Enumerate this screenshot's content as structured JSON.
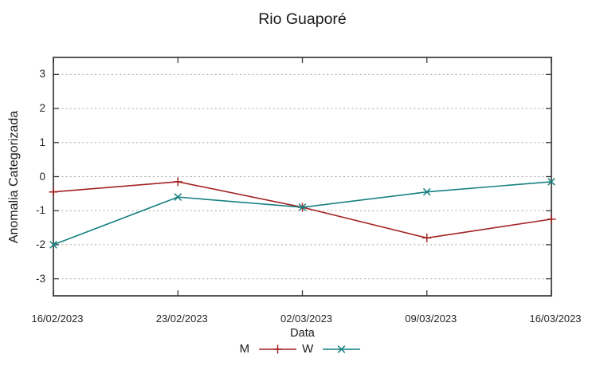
{
  "title": "Rio Guaporé",
  "colors": {
    "text": "#1a1a1a",
    "grid": "#a8a8a8",
    "frame": "#565656",
    "tick": "#3a3a3a",
    "series_m": "#a32323",
    "series_w": "#178080"
  },
  "chart_data": {
    "type": "line",
    "title": "Rio Guaporé",
    "xlabel": "Data",
    "ylabel": "Anomalia Categorizada",
    "categories": [
      "16/02/2023",
      "23/02/2023",
      "02/03/2023",
      "09/03/2023",
      "16/03/2023"
    ],
    "yticks": [
      3,
      2,
      1,
      0,
      -1,
      -2,
      -3
    ],
    "ylim": [
      -3.5,
      3.5
    ],
    "grid": "horizontal-dotted",
    "legend_position": "bottom-center",
    "series": [
      {
        "name": "M",
        "color": "#a32323",
        "marker": "plus",
        "values": [
          -0.45,
          -0.15,
          -0.9,
          -1.8,
          -1.25
        ]
      },
      {
        "name": "W",
        "color": "#178080",
        "marker": "cross",
        "values": [
          -2.0,
          -0.6,
          -0.9,
          -0.45,
          -0.15
        ]
      }
    ]
  }
}
